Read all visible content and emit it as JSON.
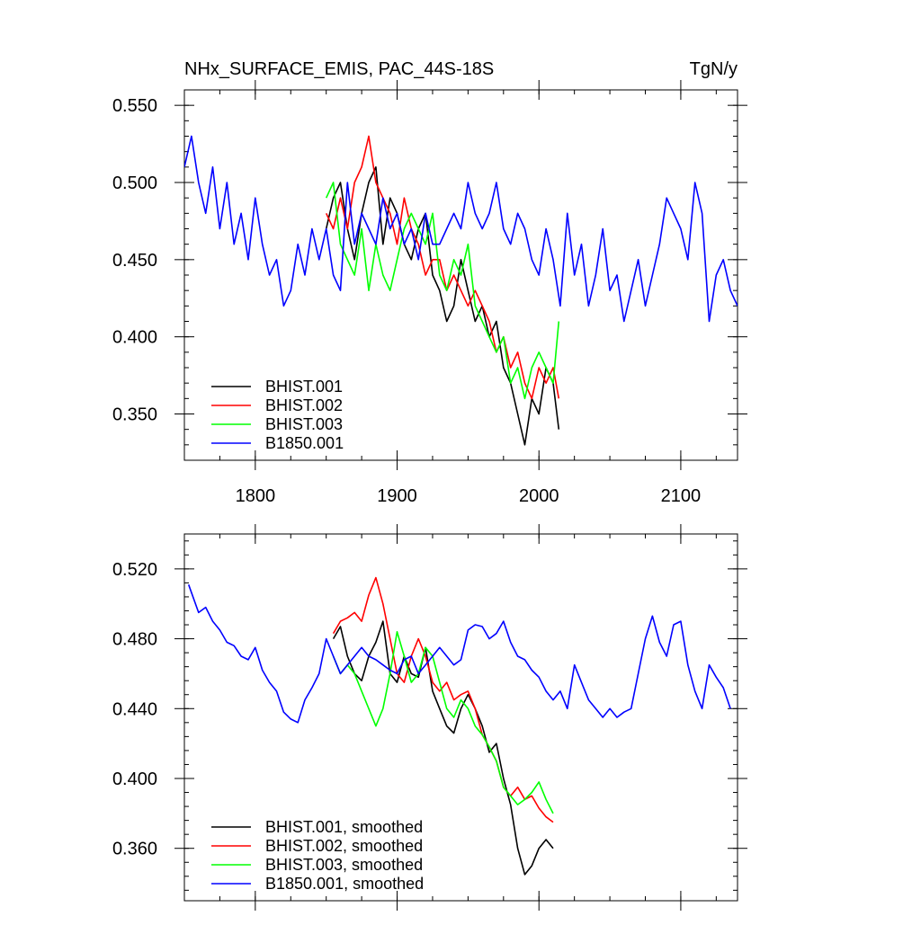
{
  "chart_data": [
    {
      "type": "line",
      "title": "NHx_SURFACE_EMIS, PAC_44S-18S",
      "units": "TgN/y",
      "xlim": [
        1750,
        2140
      ],
      "ylim": [
        0.32,
        0.56
      ],
      "xticks": [
        1800,
        1900,
        2000,
        2100
      ],
      "xtick_labels": [
        "1800",
        "1900",
        "2000",
        "2100"
      ],
      "yticks": [
        0.35,
        0.4,
        0.45,
        0.5,
        0.55
      ],
      "ytick_labels": [
        "0.350",
        "0.400",
        "0.450",
        "0.500",
        "0.550"
      ],
      "legend": "bottom-left",
      "series": [
        {
          "name": "BHIST.001",
          "color": "#000000",
          "x": [
            1850,
            1855,
            1860,
            1865,
            1870,
            1875,
            1880,
            1885,
            1890,
            1895,
            1900,
            1905,
            1910,
            1915,
            1920,
            1925,
            1930,
            1935,
            1940,
            1945,
            1950,
            1955,
            1960,
            1965,
            1970,
            1975,
            1980,
            1985,
            1990,
            1995,
            2000,
            2005,
            2010,
            2014
          ],
          "values": [
            0.47,
            0.49,
            0.5,
            0.47,
            0.45,
            0.48,
            0.5,
            0.51,
            0.46,
            0.49,
            0.48,
            0.46,
            0.45,
            0.47,
            0.48,
            0.44,
            0.43,
            0.41,
            0.42,
            0.45,
            0.43,
            0.41,
            0.42,
            0.4,
            0.41,
            0.38,
            0.37,
            0.35,
            0.33,
            0.36,
            0.35,
            0.38,
            0.37,
            0.34
          ]
        },
        {
          "name": "BHIST.002",
          "color": "#ff0000",
          "x": [
            1850,
            1855,
            1860,
            1865,
            1870,
            1875,
            1880,
            1885,
            1890,
            1895,
            1900,
            1905,
            1910,
            1915,
            1920,
            1925,
            1930,
            1935,
            1940,
            1945,
            1950,
            1955,
            1960,
            1965,
            1970,
            1975,
            1980,
            1985,
            1990,
            1995,
            2000,
            2005,
            2010,
            2014
          ],
          "values": [
            0.48,
            0.47,
            0.49,
            0.47,
            0.5,
            0.51,
            0.53,
            0.5,
            0.49,
            0.48,
            0.46,
            0.49,
            0.47,
            0.46,
            0.44,
            0.45,
            0.45,
            0.43,
            0.44,
            0.43,
            0.42,
            0.43,
            0.42,
            0.41,
            0.39,
            0.4,
            0.38,
            0.39,
            0.37,
            0.36,
            0.38,
            0.37,
            0.38,
            0.36
          ]
        },
        {
          "name": "BHIST.003",
          "color": "#00ff00",
          "x": [
            1850,
            1855,
            1860,
            1865,
            1870,
            1875,
            1880,
            1885,
            1890,
            1895,
            1900,
            1905,
            1910,
            1915,
            1920,
            1925,
            1930,
            1935,
            1940,
            1945,
            1950,
            1955,
            1960,
            1965,
            1970,
            1975,
            1980,
            1985,
            1990,
            1995,
            2000,
            2005,
            2010,
            2014
          ],
          "values": [
            0.49,
            0.5,
            0.46,
            0.45,
            0.44,
            0.47,
            0.43,
            0.46,
            0.44,
            0.43,
            0.45,
            0.47,
            0.48,
            0.47,
            0.46,
            0.48,
            0.44,
            0.43,
            0.45,
            0.44,
            0.46,
            0.42,
            0.41,
            0.4,
            0.39,
            0.4,
            0.37,
            0.38,
            0.36,
            0.38,
            0.39,
            0.38,
            0.37,
            0.41
          ]
        },
        {
          "name": "B1850.001",
          "color": "#0000ff",
          "x": [
            1750,
            1755,
            1760,
            1765,
            1770,
            1775,
            1780,
            1785,
            1790,
            1795,
            1800,
            1805,
            1810,
            1815,
            1820,
            1825,
            1830,
            1835,
            1840,
            1845,
            1850,
            1855,
            1860,
            1865,
            1870,
            1875,
            1880,
            1885,
            1890,
            1895,
            1900,
            1905,
            1910,
            1915,
            1920,
            1925,
            1930,
            1935,
            1940,
            1945,
            1950,
            1955,
            1960,
            1965,
            1970,
            1975,
            1980,
            1985,
            1990,
            1995,
            2000,
            2005,
            2010,
            2015,
            2020,
            2025,
            2030,
            2035,
            2040,
            2045,
            2050,
            2055,
            2060,
            2065,
            2070,
            2075,
            2080,
            2085,
            2090,
            2095,
            2100,
            2105,
            2110,
            2115,
            2120,
            2125,
            2130,
            2135,
            2140
          ],
          "values": [
            0.51,
            0.53,
            0.5,
            0.48,
            0.51,
            0.47,
            0.5,
            0.46,
            0.48,
            0.45,
            0.49,
            0.46,
            0.44,
            0.45,
            0.42,
            0.43,
            0.46,
            0.44,
            0.47,
            0.45,
            0.47,
            0.44,
            0.43,
            0.5,
            0.46,
            0.48,
            0.47,
            0.46,
            0.49,
            0.47,
            0.48,
            0.46,
            0.47,
            0.45,
            0.48,
            0.46,
            0.46,
            0.47,
            0.48,
            0.47,
            0.5,
            0.48,
            0.47,
            0.48,
            0.5,
            0.47,
            0.46,
            0.48,
            0.47,
            0.45,
            0.44,
            0.47,
            0.45,
            0.42,
            0.48,
            0.44,
            0.46,
            0.42,
            0.44,
            0.47,
            0.43,
            0.44,
            0.41,
            0.43,
            0.45,
            0.42,
            0.44,
            0.46,
            0.49,
            0.48,
            0.47,
            0.45,
            0.5,
            0.48,
            0.41,
            0.44,
            0.45,
            0.43,
            0.42
          ]
        }
      ]
    },
    {
      "type": "line",
      "title": "",
      "xlim": [
        1750,
        2140
      ],
      "ylim": [
        0.33,
        0.54
      ],
      "xticks": [
        1800,
        1900,
        2000,
        2100
      ],
      "xtick_labels": [
        "",
        "",
        "",
        ""
      ],
      "yticks": [
        0.36,
        0.4,
        0.44,
        0.48,
        0.52
      ],
      "ytick_labels": [
        "0.360",
        "0.400",
        "0.440",
        "0.480",
        "0.520"
      ],
      "legend": "bottom-left",
      "series": [
        {
          "name": "BHIST.001, smoothed",
          "color": "#000000",
          "x": [
            1855,
            1860,
            1865,
            1870,
            1875,
            1880,
            1885,
            1890,
            1895,
            1900,
            1905,
            1910,
            1915,
            1920,
            1925,
            1930,
            1935,
            1940,
            1945,
            1950,
            1955,
            1960,
            1965,
            1970,
            1975,
            1980,
            1985,
            1990,
            1995,
            2000,
            2005,
            2010
          ],
          "values": [
            0.48,
            0.487,
            0.47,
            0.46,
            0.456,
            0.47,
            0.478,
            0.49,
            0.46,
            0.455,
            0.47,
            0.46,
            0.458,
            0.475,
            0.45,
            0.44,
            0.43,
            0.426,
            0.44,
            0.448,
            0.44,
            0.43,
            0.415,
            0.42,
            0.4,
            0.385,
            0.36,
            0.345,
            0.35,
            0.36,
            0.365,
            0.36
          ]
        },
        {
          "name": "BHIST.002, smoothed",
          "color": "#ff0000",
          "x": [
            1855,
            1860,
            1865,
            1870,
            1875,
            1880,
            1885,
            1890,
            1895,
            1900,
            1905,
            1910,
            1915,
            1920,
            1925,
            1930,
            1935,
            1940,
            1945,
            1950,
            1955,
            1960,
            1965,
            1970,
            1975,
            1980,
            1985,
            1990,
            1995,
            2000,
            2005,
            2010
          ],
          "values": [
            0.483,
            0.49,
            0.492,
            0.495,
            0.49,
            0.505,
            0.515,
            0.5,
            0.48,
            0.46,
            0.455,
            0.47,
            0.48,
            0.47,
            0.455,
            0.45,
            0.455,
            0.445,
            0.448,
            0.45,
            0.44,
            0.425,
            0.418,
            0.41,
            0.395,
            0.39,
            0.395,
            0.388,
            0.39,
            0.383,
            0.378,
            0.375
          ]
        },
        {
          "name": "BHIST.003, smoothed",
          "color": "#00ff00",
          "x": [
            1855,
            1860,
            1865,
            1870,
            1875,
            1880,
            1885,
            1890,
            1895,
            1900,
            1905,
            1910,
            1915,
            1920,
            1925,
            1930,
            1935,
            1940,
            1945,
            1950,
            1955,
            1960,
            1965,
            1970,
            1975,
            1980,
            1985,
            1990,
            1995,
            2000,
            2005,
            2010
          ],
          "values": [
            0.47,
            0.46,
            0.465,
            0.46,
            0.45,
            0.44,
            0.43,
            0.44,
            0.46,
            0.484,
            0.47,
            0.455,
            0.46,
            0.475,
            0.47,
            0.455,
            0.44,
            0.435,
            0.445,
            0.44,
            0.43,
            0.425,
            0.418,
            0.41,
            0.395,
            0.39,
            0.385,
            0.388,
            0.392,
            0.398,
            0.388,
            0.38
          ]
        },
        {
          "name": "B1850.001, smoothed",
          "color": "#0000ff",
          "x": [
            1753,
            1760,
            1765,
            1770,
            1775,
            1780,
            1785,
            1790,
            1795,
            1800,
            1805,
            1810,
            1815,
            1820,
            1825,
            1830,
            1835,
            1840,
            1845,
            1850,
            1855,
            1860,
            1865,
            1870,
            1875,
            1880,
            1885,
            1890,
            1895,
            1900,
            1905,
            1910,
            1915,
            1920,
            1925,
            1930,
            1935,
            1940,
            1945,
            1950,
            1955,
            1960,
            1965,
            1970,
            1975,
            1980,
            1985,
            1990,
            1995,
            2000,
            2005,
            2010,
            2015,
            2020,
            2025,
            2030,
            2035,
            2040,
            2045,
            2050,
            2055,
            2060,
            2065,
            2070,
            2075,
            2080,
            2085,
            2090,
            2095,
            2100,
            2105,
            2110,
            2115,
            2120,
            2125,
            2130,
            2135
          ],
          "values": [
            0.511,
            0.495,
            0.498,
            0.49,
            0.485,
            0.478,
            0.476,
            0.47,
            0.468,
            0.475,
            0.462,
            0.455,
            0.45,
            0.438,
            0.434,
            0.432,
            0.445,
            0.452,
            0.46,
            0.48,
            0.47,
            0.46,
            0.465,
            0.47,
            0.475,
            0.47,
            0.468,
            0.465,
            0.462,
            0.46,
            0.468,
            0.47,
            0.46,
            0.465,
            0.47,
            0.475,
            0.47,
            0.465,
            0.468,
            0.485,
            0.488,
            0.487,
            0.48,
            0.483,
            0.49,
            0.478,
            0.47,
            0.468,
            0.462,
            0.458,
            0.45,
            0.445,
            0.45,
            0.44,
            0.465,
            0.455,
            0.445,
            0.44,
            0.435,
            0.44,
            0.435,
            0.438,
            0.44,
            0.46,
            0.48,
            0.493,
            0.478,
            0.47,
            0.488,
            0.49,
            0.465,
            0.45,
            0.44,
            0.465,
            0.458,
            0.452,
            0.44
          ]
        }
      ]
    }
  ]
}
